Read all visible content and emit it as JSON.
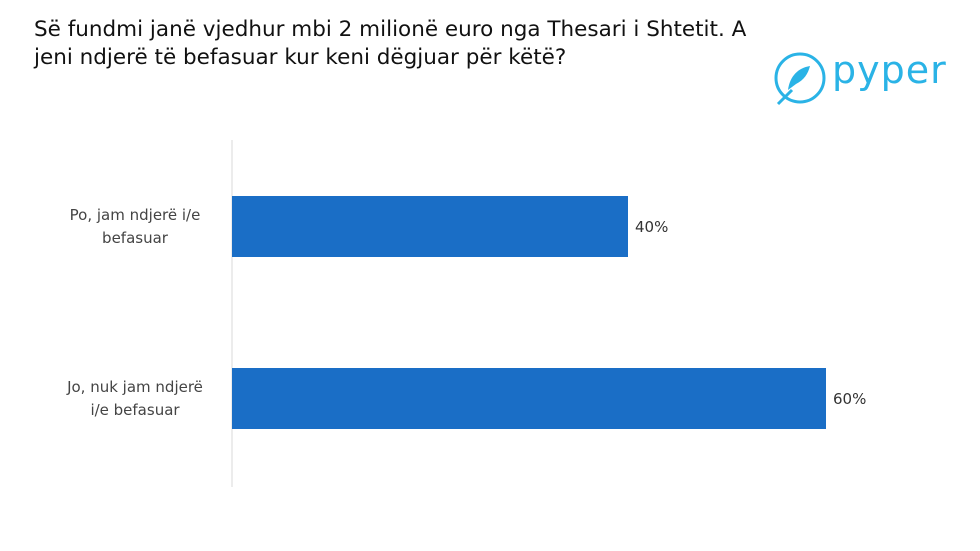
{
  "chart_data": {
    "type": "bar",
    "orientation": "horizontal",
    "title": "Së fundmi janë vjedhur mbi 2 milionë euro nga Thesari i Shtetit. A jeni ndjerë të befasuar kur keni dëgjuar për këtë?",
    "categories": [
      "Po, jam ndjerë i/e befasuar",
      "Jo, nuk jam ndjerë i/e befasuar"
    ],
    "values": [
      40,
      60
    ],
    "value_labels": [
      "40%",
      "60%"
    ],
    "color": "#1a6ec6"
  },
  "logo": {
    "text": "pyper"
  }
}
